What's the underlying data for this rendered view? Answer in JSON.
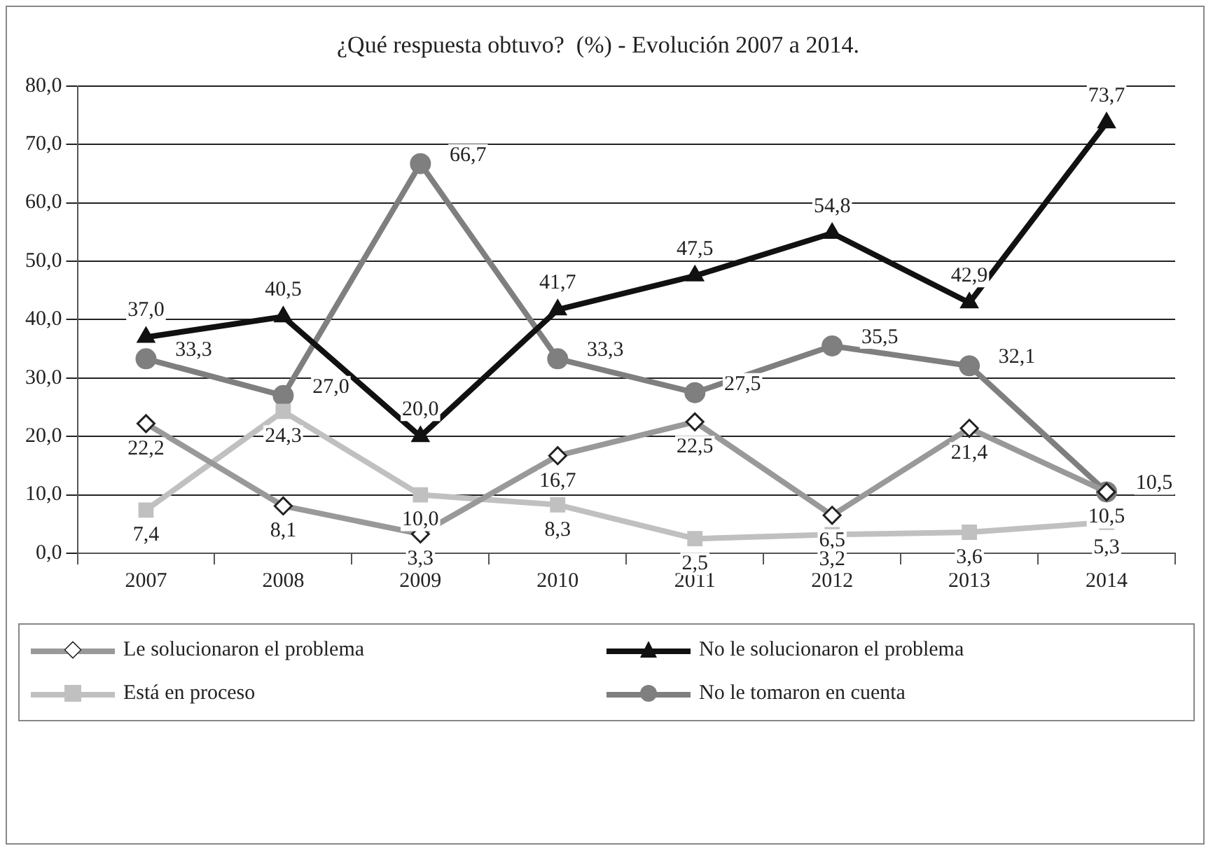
{
  "chart_data": {
    "type": "line",
    "title": "¿Qué respuesta obtuvo?  (%) - Evolución 2007 a 2014.",
    "categories": [
      "2007",
      "2008",
      "2009",
      "2010",
      "2011",
      "2012",
      "2013",
      "2014"
    ],
    "series": [
      {
        "name": "Le solucionaron el problema",
        "color": "#999999",
        "marker": "diamond",
        "values": [
          22.2,
          8.1,
          3.3,
          16.7,
          22.5,
          6.5,
          21.4,
          10.5
        ],
        "value_labels": [
          "22,2",
          "8,1",
          "3,3",
          "16,7",
          "22,5",
          "6,5",
          "21,4",
          "10,5"
        ]
      },
      {
        "name": "No le solucionaron el problema",
        "color": "#111111",
        "marker": "triangle",
        "values": [
          37.0,
          40.5,
          20.0,
          41.7,
          47.5,
          54.8,
          42.9,
          73.7
        ],
        "value_labels": [
          "37,0",
          "40,5",
          "20,0",
          "41,7",
          "47,5",
          "54,8",
          "42,9",
          "73,7"
        ]
      },
      {
        "name": "Está en proceso",
        "color": "#c0c0c0",
        "marker": "square",
        "values": [
          7.4,
          24.3,
          10.0,
          8.3,
          2.5,
          3.2,
          3.6,
          5.3
        ],
        "value_labels": [
          "7,4",
          "24,3",
          "10,0",
          "8,3",
          "2,5",
          "3,2",
          "3,6",
          "5,3"
        ]
      },
      {
        "name": "No le tomaron en cuenta",
        "color": "#7f7f7f",
        "marker": "circle",
        "values": [
          33.3,
          27.0,
          66.7,
          33.3,
          27.5,
          35.5,
          32.1,
          10.5
        ],
        "value_labels": [
          "33,3",
          "27,0",
          "66,7",
          "33,3",
          "27,5",
          "35,5",
          "32,1",
          "10,5"
        ]
      }
    ],
    "ylim": [
      0,
      80
    ],
    "yticks": [
      {
        "value": 0,
        "label": "0,0"
      },
      {
        "value": 10,
        "label": "10,0"
      },
      {
        "value": 20,
        "label": "20,0"
      },
      {
        "value": 30,
        "label": "30,0"
      },
      {
        "value": 40,
        "label": "40,0"
      },
      {
        "value": 50,
        "label": "50,0"
      },
      {
        "value": 60,
        "label": "60,0"
      },
      {
        "value": 70,
        "label": "70,0"
      },
      {
        "value": 80,
        "label": "80,0"
      }
    ],
    "grid": "y",
    "legend": "bottom",
    "line_style": "solid"
  }
}
